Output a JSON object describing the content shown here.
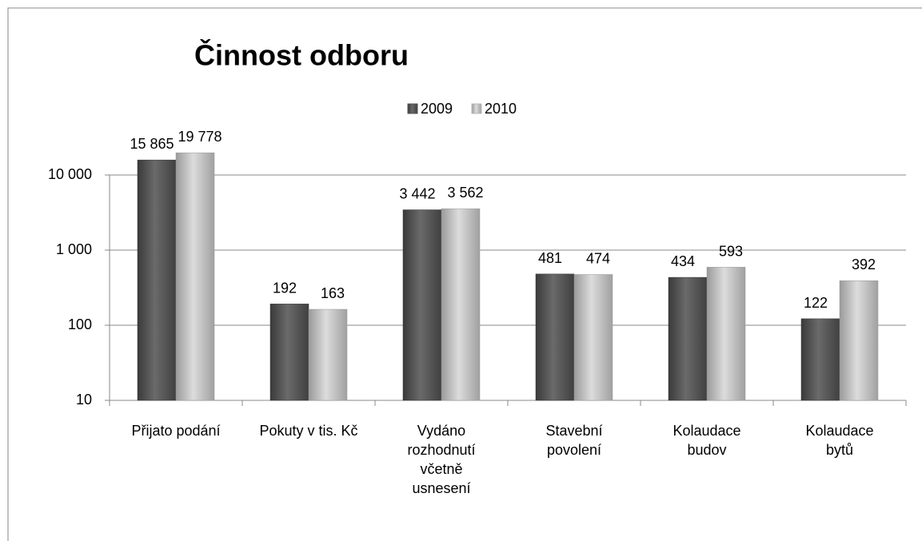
{
  "chart_data": {
    "type": "bar",
    "title": "Činnost odboru",
    "categories": [
      "Přijato podání",
      "Pokuty v tis. Kč",
      "Vydáno\nrozhodnutí\nvčetně\nusnesení",
      "Stavební\npovolení",
      "Kolaudace\nbudov",
      "Kolaudace\nbytů"
    ],
    "series": [
      {
        "name": "2009",
        "color": "#555555",
        "values": [
          15865,
          192,
          3442,
          481,
          434,
          122
        ],
        "value_labels": [
          "15 865",
          "192",
          "3 442",
          "481",
          "434",
          "122"
        ]
      },
      {
        "name": "2010",
        "color": "#b8b8b8",
        "values": [
          19778,
          163,
          3562,
          474,
          593,
          392
        ],
        "value_labels": [
          "19 778",
          "163",
          "3 562",
          "474",
          "593",
          "392"
        ]
      }
    ],
    "log_scale": true,
    "ylim": [
      10,
      100000
    ],
    "yticks": [
      10,
      100,
      {
        "value": 1000,
        "label": "1 000"
      },
      {
        "value": 10000,
        "label": "10 000"
      }
    ],
    "grid": true,
    "legend": "top"
  }
}
